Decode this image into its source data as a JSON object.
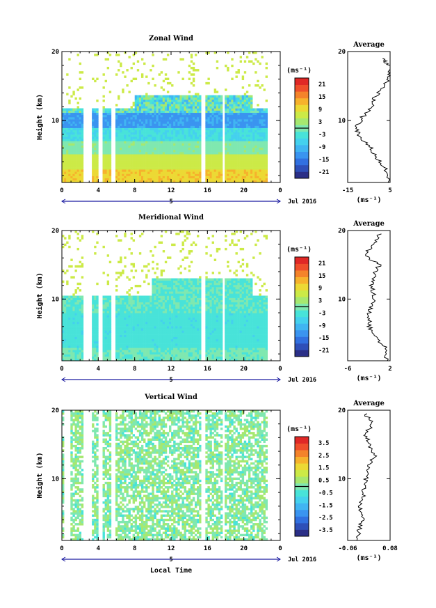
{
  "chart_data": [
    {
      "type": "heatmap",
      "title": "Zonal Wind",
      "ylabel": "Height (km)",
      "xlabel": "",
      "xticks": [
        "0",
        "4",
        "8",
        "12",
        "16",
        "20",
        "0"
      ],
      "yticks": [
        "20",
        "10"
      ],
      "xlim": [
        0,
        24
      ],
      "ylim": [
        1,
        20
      ],
      "date_label": "5",
      "month_label": "Jul 2016",
      "colorbar": {
        "unit": "(ms⁻¹)",
        "ticks": [
          "21",
          "15",
          "9",
          "3",
          "-3",
          "-9",
          "-15",
          "-21"
        ],
        "range": [
          -24,
          24
        ]
      },
      "profile": {
        "title": "Average",
        "xticks": [
          "-15",
          "5"
        ],
        "xlim": [
          -15,
          5
        ],
        "unit": "(ms⁻¹)",
        "yticks": [
          "20",
          "10"
        ],
        "points": [
          [
            2,
            19
          ],
          [
            4,
            18
          ],
          [
            5,
            16.5
          ],
          [
            2,
            15
          ],
          [
            -2,
            13.5
          ],
          [
            -4,
            12
          ],
          [
            -8,
            10.5
          ],
          [
            -11,
            9
          ],
          [
            -9,
            7.5
          ],
          [
            -4,
            6
          ],
          [
            -1,
            4.5
          ],
          [
            3,
            3
          ],
          [
            4,
            1
          ]
        ]
      },
      "time_gaps": [
        [
          2.4,
          3.2
        ],
        [
          4.1,
          4.5
        ],
        [
          5.4,
          5.9
        ],
        [
          15.4,
          15.8
        ],
        [
          17.6,
          17.9
        ]
      ],
      "data_end": 22.6
    },
    {
      "type": "heatmap",
      "title": "Meridional Wind",
      "ylabel": "Height (km)",
      "xlabel": "",
      "xticks": [
        "0",
        "4",
        "8",
        "12",
        "16",
        "20",
        "0"
      ],
      "yticks": [
        "20",
        "10"
      ],
      "xlim": [
        0,
        24
      ],
      "ylim": [
        1,
        20
      ],
      "date_label": "5",
      "month_label": "Jul 2016",
      "colorbar": {
        "unit": "(ms⁻¹)",
        "ticks": [
          "21",
          "15",
          "9",
          "3",
          "-3",
          "-9",
          "-15",
          "-21"
        ],
        "range": [
          -24,
          24
        ]
      },
      "profile": {
        "title": "Average",
        "xticks": [
          "-6",
          "2"
        ],
        "xlim": [
          -6,
          2
        ],
        "unit": "(ms⁻¹)",
        "yticks": [
          "20",
          "10"
        ],
        "points": [
          [
            0,
            19.5
          ],
          [
            -1,
            18
          ],
          [
            -3,
            16.5
          ],
          [
            0,
            15
          ],
          [
            -1,
            13.5
          ],
          [
            -1.5,
            12
          ],
          [
            -1,
            10.5
          ],
          [
            -1.5,
            9
          ],
          [
            -2,
            7.5
          ],
          [
            -2,
            6
          ],
          [
            -1,
            4.5
          ],
          [
            1,
            3
          ],
          [
            1.5,
            1
          ]
        ]
      },
      "time_gaps": [
        [
          2.4,
          3.2
        ],
        [
          4.1,
          4.5
        ],
        [
          5.4,
          5.9
        ],
        [
          15.4,
          15.8
        ],
        [
          17.6,
          17.9
        ]
      ],
      "data_end": 22.6
    },
    {
      "type": "heatmap",
      "title": "Vertical Wind",
      "ylabel": "Height (km)",
      "xlabel": "Local Time",
      "xticks": [
        "0",
        "4",
        "8",
        "12",
        "16",
        "20",
        "0"
      ],
      "yticks": [
        "20",
        "10"
      ],
      "xlim": [
        0,
        24
      ],
      "ylim": [
        1,
        20
      ],
      "date_label": "5",
      "month_label": "Jul 2016",
      "colorbar": {
        "unit": "(ms⁻¹)",
        "ticks": [
          "3.5",
          "2.5",
          "1.5",
          "0.5",
          "-0.5",
          "-1.5",
          "-2.5",
          "-3.5"
        ],
        "range": [
          -4,
          4
        ]
      },
      "profile": {
        "title": "Average",
        "xticks": [
          "-0.06",
          "0.08"
        ],
        "xlim": [
          -0.06,
          0.08
        ],
        "unit": "(ms⁻¹)",
        "yticks": [
          "20",
          "10"
        ],
        "points": [
          [
            0.0,
            19.5
          ],
          [
            0.02,
            18
          ],
          [
            0.0,
            16.5
          ],
          [
            0.01,
            15
          ],
          [
            0.03,
            13.5
          ],
          [
            0.01,
            12
          ],
          [
            0.0,
            10.5
          ],
          [
            0.0,
            9
          ],
          [
            -0.01,
            7.5
          ],
          [
            -0.02,
            6
          ],
          [
            -0.01,
            4.5
          ],
          [
            -0.02,
            3
          ],
          [
            -0.03,
            1
          ]
        ]
      },
      "time_gaps": [
        [
          0.3,
          0.9
        ],
        [
          2.4,
          3.2
        ],
        [
          4.1,
          4.5
        ],
        [
          5.4,
          5.9
        ],
        [
          15.4,
          15.8
        ],
        [
          17.6,
          17.9
        ]
      ],
      "data_end": 22.6
    }
  ]
}
